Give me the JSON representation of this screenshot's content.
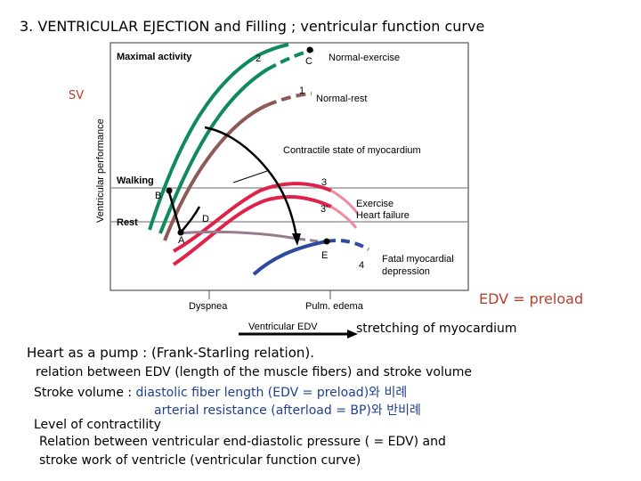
{
  "title": "3. VENTRICULAR EJECTION and Filling ; ventricular function curve",
  "figure": {
    "sv": "SV",
    "y_axis_label": "Ventricular performance",
    "x_axis_label": "Ventricular EDV",
    "levels": {
      "maximal": "Maximal activity",
      "walking": "Walking",
      "rest": "Rest"
    },
    "curves": {
      "c1": "1",
      "c2": "2",
      "c3": "3",
      "c3p": "3′",
      "c4": "4"
    },
    "points": {
      "A": "A",
      "B": "B",
      "C": "C",
      "D": "D",
      "E": "E"
    },
    "labels": {
      "normal_exercise": "Normal-exercise",
      "normal_rest": "Normal-rest",
      "contractile": "Contractile state of myocardium",
      "exercise": "Exercise",
      "heart_failure": "Heart failure",
      "fatal_1": "Fatal myocardial",
      "fatal_2": "depression",
      "dyspnea": "Dyspnea",
      "pulm_edema": "Pulm. edema"
    },
    "colors": {
      "green": "#0f8a5a",
      "brown": "#8c5a57",
      "red": "#e0224b",
      "pink": "#f08aa0",
      "blue": "#2e4a9a",
      "mauve": "#9a7a8e",
      "black": "#000000"
    }
  },
  "edv_note": "EDV = preload",
  "stretch_note": "stretching of myocardium",
  "text": {
    "l1": "Heart as a pump : (Frank-Starling relation).",
    "l2": "relation between EDV (length of the muscle fibers) and stroke volume",
    "l3a": "Stroke volume : ",
    "l3b": "diastolic fiber length (EDV = preload)와 비례",
    "l4": "arterial resistance (afterload = BP)와 반비례",
    "l5": "Level of contractility",
    "l6": "Relation between ventricular end-diastolic pressure ( = EDV) and",
    "l7": "stroke work of ventricle (ventricular function curve)"
  }
}
